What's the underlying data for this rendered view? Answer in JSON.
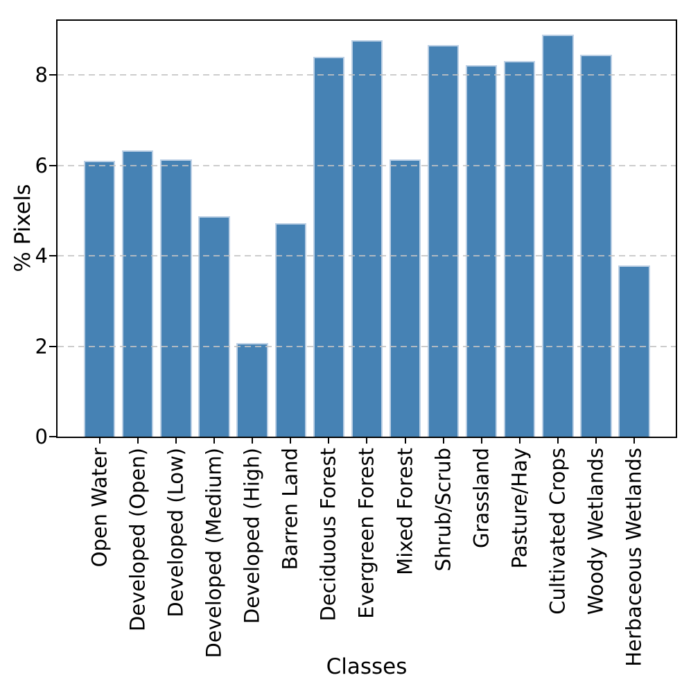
{
  "chart_data": {
    "type": "bar",
    "xlabel": "Classes",
    "ylabel": "% Pixels",
    "categories": [
      "Open Water",
      "Developed (Open)",
      "Developed (Low)",
      "Developed (Medium)",
      "Developed (High)",
      "Barren Land",
      "Deciduous Forest",
      "Evergreen Forest",
      "Mixed Forest",
      "Shrub/Scrub",
      "Grassland",
      "Pasture/Hay",
      "Cultivated Crops",
      "Woody Wetlands",
      "Herbaceous Wetlands"
    ],
    "values": [
      6.1,
      6.33,
      6.14,
      4.88,
      2.07,
      4.72,
      8.41,
      8.77,
      6.14,
      8.67,
      8.22,
      8.31,
      8.89,
      8.45,
      3.78
    ],
    "ylim": [
      0,
      9.2
    ],
    "yticks": [
      0,
      2,
      4,
      6,
      8
    ],
    "ytick_labels": [
      "0",
      "2",
      "4",
      "6",
      "8"
    ],
    "grid": {
      "axis": "y",
      "style": "dashed",
      "color": "#c3c3c3",
      "on_values": [
        2,
        4,
        6,
        8
      ],
      "above_bars": true
    },
    "bar_color": "#4682b4",
    "bar_edge_color": "#bcd0e5",
    "spine_color": "#000000",
    "legend_position": "none"
  }
}
